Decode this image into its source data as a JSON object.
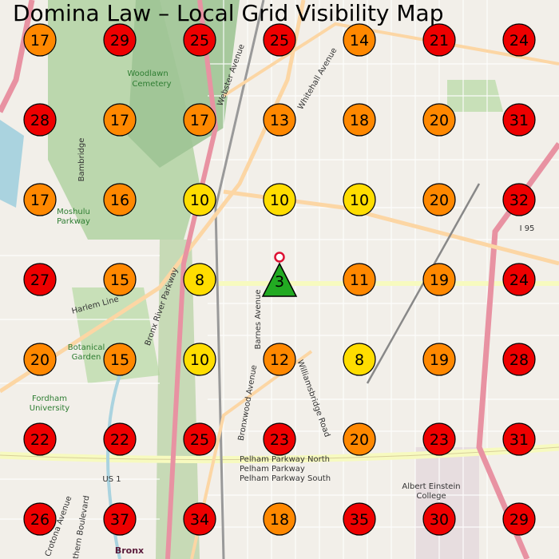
{
  "title": "Domina Law – Local Grid Visibility Map",
  "colors": {
    "red": "#ee0000",
    "orange": "#ff8800",
    "yellow": "#ffdd00",
    "green": "#22aa22",
    "center_pin": "#dd1133"
  },
  "grid": [
    [
      17,
      29,
      25,
      25,
      14,
      21,
      24
    ],
    [
      28,
      17,
      17,
      13,
      18,
      20,
      31
    ],
    [
      17,
      16,
      10,
      10,
      10,
      20,
      32
    ],
    [
      27,
      15,
      8,
      3,
      11,
      19,
      24
    ],
    [
      20,
      15,
      10,
      12,
      8,
      19,
      28
    ],
    [
      22,
      22,
      25,
      23,
      20,
      23,
      31
    ],
    [
      26,
      37,
      34,
      18,
      35,
      30,
      29
    ]
  ],
  "business_cell": {
    "row": 3,
    "col": 3,
    "rank": 3,
    "icon": "triangle-marker"
  },
  "map_labels": [
    {
      "text": "Woodlawn",
      "cls": "green"
    },
    {
      "text": "Cemetery",
      "cls": "green"
    },
    {
      "text": "Moshulu",
      "cls": "green"
    },
    {
      "text": "Parkway",
      "cls": "green"
    },
    {
      "text": "Botanical",
      "cls": "green"
    },
    {
      "text": "Garden",
      "cls": "green"
    },
    {
      "text": "Fordham",
      "cls": "green"
    },
    {
      "text": "University",
      "cls": "green"
    },
    {
      "text": "Barnes Avenue",
      "cls": ""
    },
    {
      "text": "Williamsbridge Road",
      "cls": ""
    },
    {
      "text": "Pelham Parkway North",
      "cls": ""
    },
    {
      "text": "Pelham Parkway",
      "cls": ""
    },
    {
      "text": "Pelham Parkway South",
      "cls": ""
    },
    {
      "text": "Bronx River Parkway",
      "cls": ""
    },
    {
      "text": "Webster Avenue",
      "cls": ""
    },
    {
      "text": "Harlem Line",
      "cls": ""
    },
    {
      "text": "Albert Einstein",
      "cls": ""
    },
    {
      "text": "College",
      "cls": ""
    },
    {
      "text": "Bronx",
      "cls": "dark"
    },
    {
      "text": "US 1",
      "cls": ""
    },
    {
      "text": "I 95",
      "cls": ""
    },
    {
      "text": "Whitehall Avenue",
      "cls": ""
    },
    {
      "text": "Bambridge",
      "cls": ""
    },
    {
      "text": "Bronxwood Avenue",
      "cls": ""
    },
    {
      "text": "Southern Boulevard",
      "cls": ""
    },
    {
      "text": "Crotona Avenue",
      "cls": ""
    }
  ]
}
